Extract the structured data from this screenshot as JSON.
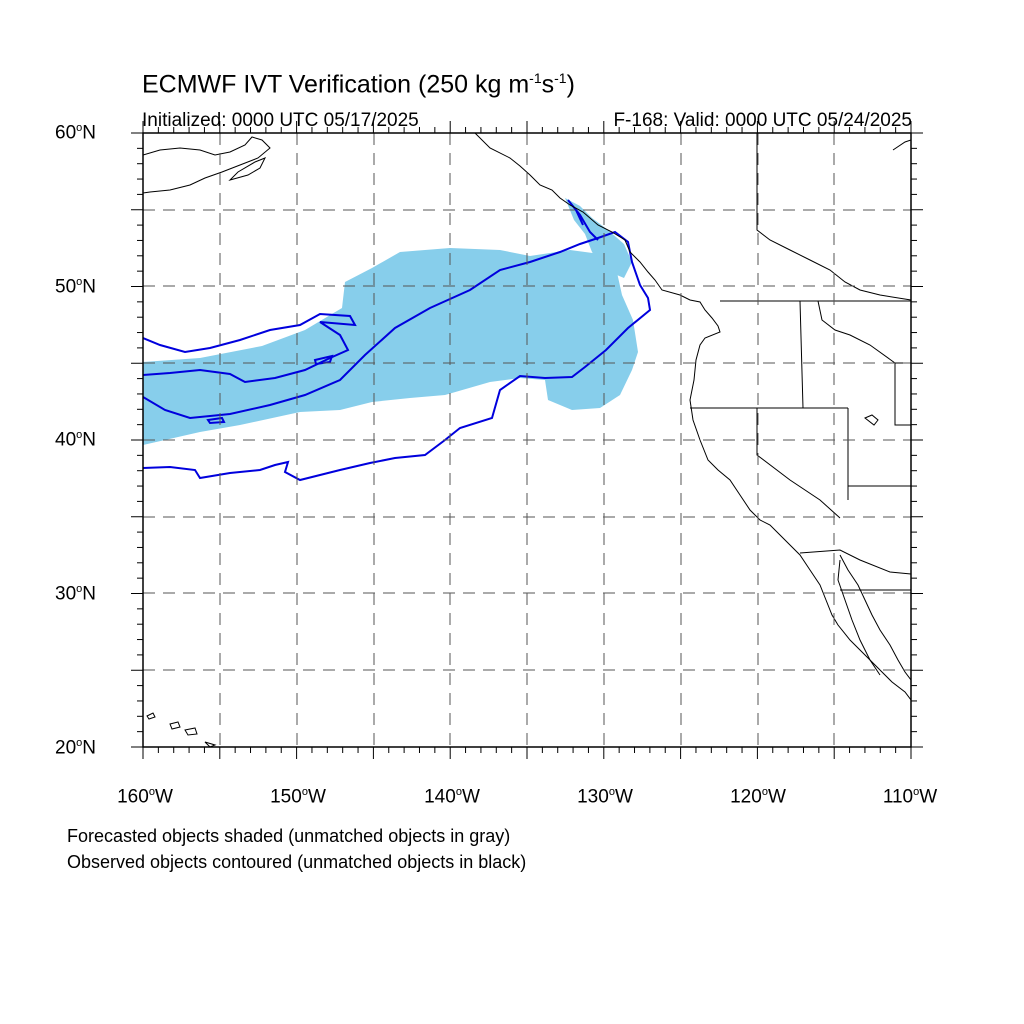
{
  "title": {
    "text": "ECMWF IVT Verification (250 kg m",
    "sup1": "-1",
    "mid": "s",
    "sup2": "-1",
    "end": ")"
  },
  "initialized": "Initialized: 0000 UTC 05/17/2025",
  "valid": "F-168: Valid: 0000 UTC 05/24/2025",
  "lat_labels": [
    {
      "deg": "60",
      "suffix": "N"
    },
    {
      "deg": "50",
      "suffix": "N"
    },
    {
      "deg": "40",
      "suffix": "N"
    },
    {
      "deg": "30",
      "suffix": "N"
    },
    {
      "deg": "20",
      "suffix": "N"
    }
  ],
  "lon_labels": [
    {
      "deg": "160",
      "suffix": "W"
    },
    {
      "deg": "150",
      "suffix": "W"
    },
    {
      "deg": "140",
      "suffix": "W"
    },
    {
      "deg": "130",
      "suffix": "W"
    },
    {
      "deg": "120",
      "suffix": "W"
    },
    {
      "deg": "110",
      "suffix": "W"
    }
  ],
  "notes": [
    "Forecasted objects shaded (unmatched objects in gray)",
    "Observed objects contoured (unmatched objects in black)"
  ],
  "colors": {
    "forecast_fill": "#87ceeb",
    "observed_contour": "#0000dd",
    "coastline": "#000000",
    "grid": "#555555"
  },
  "map_extent": {
    "lon_min": -160,
    "lon_max": -110,
    "lat_min": 20,
    "lat_max": 60
  }
}
